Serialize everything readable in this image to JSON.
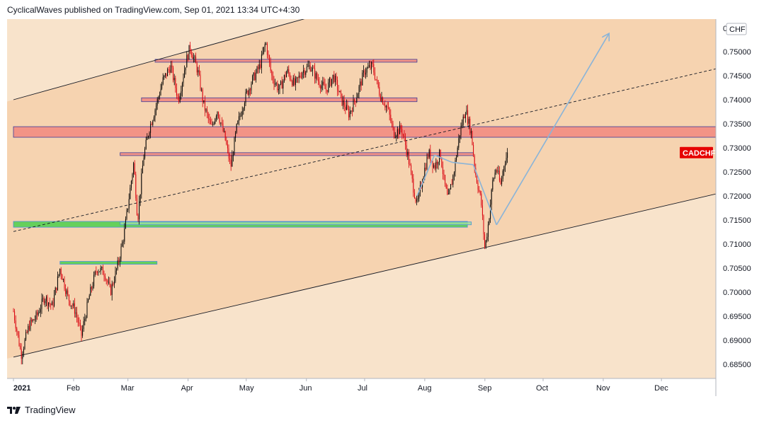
{
  "header": {
    "text": "CyclicalWaves published on TradingView.com, Sep 01, 2021 13:34 UTC+4:30"
  },
  "footer": {
    "brand": "TradingView",
    "logo_icon": "tradingview-logo-icon"
  },
  "colors": {
    "background_inner": "#f6d3b0",
    "background_outer": "#f8e3cb",
    "candle_up": "#000000",
    "candle_down": "#d9000d",
    "resistance_band": "#f28c82",
    "support_band": "#4ccf4c",
    "projection_line": "#8ab4d8",
    "symbol_badge": "#e60000"
  },
  "chart_data": {
    "type": "candlestick",
    "symbol": "CADCHF",
    "currency": "CHF",
    "x_ticks": [
      "2021",
      "Feb",
      "Mar",
      "Apr",
      "May",
      "Jun",
      "Jul",
      "Aug",
      "Sep",
      "Oct",
      "Nov",
      "Dec"
    ],
    "y_ticks": [
      "0.75000",
      "0.74500",
      "0.74000",
      "0.73500",
      "0.73000",
      "0.72500",
      "0.72000",
      "0.71500",
      "0.71000",
      "0.70500",
      "0.70000",
      "0.69500",
      "0.69000",
      "0.68500"
    ],
    "y_top_partial_tick": "0",
    "ylim": [
      0.6825,
      0.755
    ],
    "time_range": [
      "2021-01-01",
      "2022-01-01"
    ],
    "price_path": [
      [
        "2021-01-01",
        0.696
      ],
      [
        "2021-01-05",
        0.687
      ],
      [
        "2021-01-09",
        0.693
      ],
      [
        "2021-01-13",
        0.695
      ],
      [
        "2021-01-17",
        0.699
      ],
      [
        "2021-01-21",
        0.697
      ],
      [
        "2021-01-25",
        0.705
      ],
      [
        "2021-01-29",
        0.699
      ],
      [
        "2021-02-02",
        0.696
      ],
      [
        "2021-02-05",
        0.691
      ],
      [
        "2021-02-09",
        0.699
      ],
      [
        "2021-02-13",
        0.705
      ],
      [
        "2021-02-17",
        0.704
      ],
      [
        "2021-02-20",
        0.7
      ],
      [
        "2021-02-24",
        0.706
      ],
      [
        "2021-02-27",
        0.712
      ],
      [
        "2021-03-01",
        0.718
      ],
      [
        "2021-03-04",
        0.727
      ],
      [
        "2021-03-06",
        0.715
      ],
      [
        "2021-03-09",
        0.728
      ],
      [
        "2021-03-12",
        0.734
      ],
      [
        "2021-03-15",
        0.738
      ],
      [
        "2021-03-19",
        0.744
      ],
      [
        "2021-03-23",
        0.747
      ],
      [
        "2021-03-27",
        0.74
      ],
      [
        "2021-03-31",
        0.748
      ],
      [
        "2021-04-02",
        0.751
      ],
      [
        "2021-04-06",
        0.746
      ],
      [
        "2021-04-09",
        0.739
      ],
      [
        "2021-04-13",
        0.734
      ],
      [
        "2021-04-16",
        0.738
      ],
      [
        "2021-04-20",
        0.732
      ],
      [
        "2021-04-23",
        0.726
      ],
      [
        "2021-04-26",
        0.734
      ],
      [
        "2021-04-30",
        0.74
      ],
      [
        "2021-05-04",
        0.744
      ],
      [
        "2021-05-08",
        0.747
      ],
      [
        "2021-05-11",
        0.752
      ],
      [
        "2021-05-14",
        0.745
      ],
      [
        "2021-05-18",
        0.742
      ],
      [
        "2021-05-22",
        0.746
      ],
      [
        "2021-05-26",
        0.743
      ],
      [
        "2021-05-30",
        0.746
      ],
      [
        "2021-06-03",
        0.747
      ],
      [
        "2021-06-07",
        0.744
      ],
      [
        "2021-06-11",
        0.742
      ],
      [
        "2021-06-15",
        0.745
      ],
      [
        "2021-06-19",
        0.74
      ],
      [
        "2021-06-23",
        0.737
      ],
      [
        "2021-06-27",
        0.741
      ],
      [
        "2021-07-01",
        0.746
      ],
      [
        "2021-07-05",
        0.747
      ],
      [
        "2021-07-09",
        0.741
      ],
      [
        "2021-07-13",
        0.738
      ],
      [
        "2021-07-16",
        0.733
      ],
      [
        "2021-07-20",
        0.734
      ],
      [
        "2021-07-23",
        0.729
      ],
      [
        "2021-07-26",
        0.722
      ],
      [
        "2021-07-28",
        0.718
      ],
      [
        "2021-07-31",
        0.724
      ],
      [
        "2021-08-03",
        0.729
      ],
      [
        "2021-08-06",
        0.726
      ],
      [
        "2021-08-09",
        0.729
      ],
      [
        "2021-08-11",
        0.723
      ],
      [
        "2021-08-13",
        0.719
      ],
      [
        "2021-08-16",
        0.725
      ],
      [
        "2021-08-19",
        0.733
      ],
      [
        "2021-08-22",
        0.738
      ],
      [
        "2021-08-25",
        0.733
      ],
      [
        "2021-08-27",
        0.725
      ],
      [
        "2021-08-30",
        0.719
      ],
      [
        "2021-09-01",
        0.709
      ],
      [
        "2021-09-03",
        0.715
      ],
      [
        "2021-09-05",
        0.723
      ],
      [
        "2021-09-07",
        0.726
      ],
      [
        "2021-09-09",
        0.722
      ],
      [
        "2021-09-11",
        0.727
      ],
      [
        "2021-09-13",
        0.729
      ]
    ],
    "horizontal_bands": [
      {
        "kind": "resistance",
        "from": "2021-03-15",
        "to": "2021-07-28",
        "low": 0.7477,
        "high": 0.7481
      },
      {
        "kind": "resistance",
        "from": "2021-03-08",
        "to": "2021-07-28",
        "low": 0.7396,
        "high": 0.7404
      },
      {
        "kind": "resistance",
        "from": "2021-01-01",
        "to": "2022-01-01",
        "low": 0.7322,
        "high": 0.7344
      },
      {
        "kind": "resistance",
        "from": "2021-02-25",
        "to": "2021-08-26",
        "low": 0.7281,
        "high": 0.7287
      },
      {
        "kind": "support",
        "from": "2021-01-01",
        "to": "2021-08-23",
        "low": 0.7135,
        "high": 0.7147
      },
      {
        "kind": "support",
        "from": "2021-02-25",
        "to": "2021-08-25",
        "low": 0.7139,
        "high": 0.7143
      },
      {
        "kind": "support",
        "from": "2021-01-25",
        "to": "2021-03-16",
        "low": 0.7058,
        "high": 0.7061
      }
    ],
    "trend_lines": [
      {
        "style": "solid",
        "from": [
          "2021-01-01",
          0.74
        ],
        "to": [
          "2021-06-15",
          0.7585
        ]
      },
      {
        "style": "dashed",
        "from": [
          "2021-01-01",
          0.7126
        ],
        "to": [
          "2021-12-31",
          0.7466
        ]
      },
      {
        "style": "solid",
        "from": [
          "2021-01-01",
          0.6865
        ],
        "to": [
          "2021-12-31",
          0.7206
        ]
      }
    ],
    "pattern_path": [
      [
        "2021-07-28",
        0.72
      ],
      [
        "2021-08-06",
        0.7285
      ],
      [
        "2021-08-15",
        0.727
      ],
      [
        "2021-08-26",
        0.7265
      ],
      [
        "2021-09-07",
        0.714
      ],
      [
        "2021-11-04",
        0.7538
      ]
    ]
  }
}
